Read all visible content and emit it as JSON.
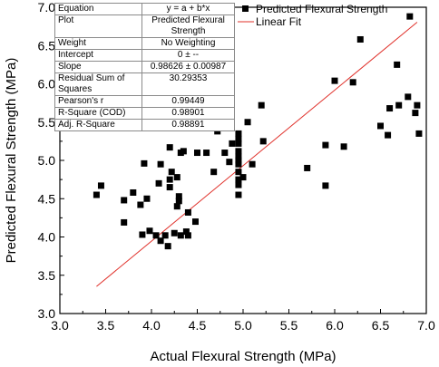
{
  "stats_table": [
    {
      "label": "Equation",
      "value": "y = a + b*x"
    },
    {
      "label": "Plot",
      "value": "Predicted Flexural Strength"
    },
    {
      "label": "Weight",
      "value": "No Weighting"
    },
    {
      "label": "Intercept",
      "value": "0 ± --"
    },
    {
      "label": "Slope",
      "value": "0.98626 ± 0.00987"
    },
    {
      "label": "Residual Sum of Squares",
      "value": "30.29353"
    },
    {
      "label": "Pearson's r",
      "value": "0.99449"
    },
    {
      "label": "R-Square (COD)",
      "value": "0.98901"
    },
    {
      "label": "Adj. R-Square",
      "value": "0.98891"
    }
  ],
  "chart_data": {
    "type": "scatter",
    "xlabel": "Actual Flexural Strength (MPa)",
    "ylabel": "Predicted Flexural Strength (MPa)",
    "xlim": [
      3.0,
      7.0
    ],
    "ylim": [
      3.0,
      7.0
    ],
    "xticks": [
      "3.0",
      "3.5",
      "4.0",
      "4.5",
      "5.0",
      "5.5",
      "6.0",
      "6.5",
      "7.0"
    ],
    "yticks": [
      "3.0",
      "3.5",
      "4.0",
      "4.5",
      "5.0",
      "5.5",
      "6.0",
      "6.5",
      "7.0"
    ],
    "grid": false,
    "legend": {
      "placement": "top-right",
      "entries": [
        "Predicted Flexural Strength",
        "Linear Fit"
      ]
    },
    "colors": {
      "points": "#000000",
      "fit_line": "#e0302a"
    },
    "series": [
      {
        "name": "Predicted Flexural Strength",
        "kind": "scatter",
        "points": [
          [
            3.4,
            4.55
          ],
          [
            3.45,
            4.67
          ],
          [
            3.7,
            4.48
          ],
          [
            3.7,
            4.19
          ],
          [
            3.8,
            4.58
          ],
          [
            3.88,
            4.42
          ],
          [
            3.9,
            4.03
          ],
          [
            3.92,
            4.96
          ],
          [
            3.95,
            4.5
          ],
          [
            3.98,
            4.08
          ],
          [
            4.05,
            4.02
          ],
          [
            4.08,
            4.7
          ],
          [
            4.1,
            3.95
          ],
          [
            4.1,
            4.95
          ],
          [
            4.15,
            4.02
          ],
          [
            4.18,
            3.88
          ],
          [
            4.2,
            4.65
          ],
          [
            4.2,
            4.75
          ],
          [
            4.2,
            5.17
          ],
          [
            4.22,
            4.85
          ],
          [
            4.25,
            4.05
          ],
          [
            4.28,
            4.4
          ],
          [
            4.28,
            4.78
          ],
          [
            4.3,
            4.53
          ],
          [
            4.3,
            4.47
          ],
          [
            4.32,
            4.02
          ],
          [
            4.32,
            5.1
          ],
          [
            4.35,
            5.12
          ],
          [
            4.38,
            4.07
          ],
          [
            4.4,
            4.32
          ],
          [
            4.4,
            4.02
          ],
          [
            4.42,
            5.45
          ],
          [
            4.48,
            4.2
          ],
          [
            4.5,
            5.1
          ],
          [
            4.6,
            5.1
          ],
          [
            4.68,
            4.85
          ],
          [
            4.72,
            5.38
          ],
          [
            4.8,
            5.1
          ],
          [
            4.85,
            4.98
          ],
          [
            4.88,
            5.22
          ],
          [
            4.95,
            4.55
          ],
          [
            4.95,
            4.68
          ],
          [
            4.95,
            4.75
          ],
          [
            4.95,
            4.85
          ],
          [
            4.95,
            4.95
          ],
          [
            4.95,
            5.0
          ],
          [
            4.95,
            5.05
          ],
          [
            4.95,
            5.12
          ],
          [
            4.95,
            5.22
          ],
          [
            4.95,
            5.28
          ],
          [
            4.95,
            5.35
          ],
          [
            5.0,
            4.78
          ],
          [
            5.05,
            5.5
          ],
          [
            5.1,
            4.95
          ],
          [
            5.2,
            5.72
          ],
          [
            5.22,
            5.25
          ],
          [
            5.7,
            4.9
          ],
          [
            5.9,
            5.2
          ],
          [
            5.9,
            4.67
          ],
          [
            6.0,
            6.04
          ],
          [
            6.1,
            5.18
          ],
          [
            6.2,
            6.02
          ],
          [
            6.28,
            6.58
          ],
          [
            6.5,
            5.45
          ],
          [
            6.58,
            5.33
          ],
          [
            6.6,
            5.68
          ],
          [
            6.68,
            6.25
          ],
          [
            6.7,
            5.72
          ],
          [
            6.8,
            5.83
          ],
          [
            6.82,
            6.88
          ],
          [
            6.88,
            5.62
          ],
          [
            6.9,
            5.72
          ],
          [
            6.92,
            5.35
          ]
        ]
      },
      {
        "name": "Linear Fit",
        "kind": "line",
        "intercept": 0,
        "slope": 0.98626,
        "x_range": [
          3.4,
          6.9
        ]
      }
    ]
  }
}
